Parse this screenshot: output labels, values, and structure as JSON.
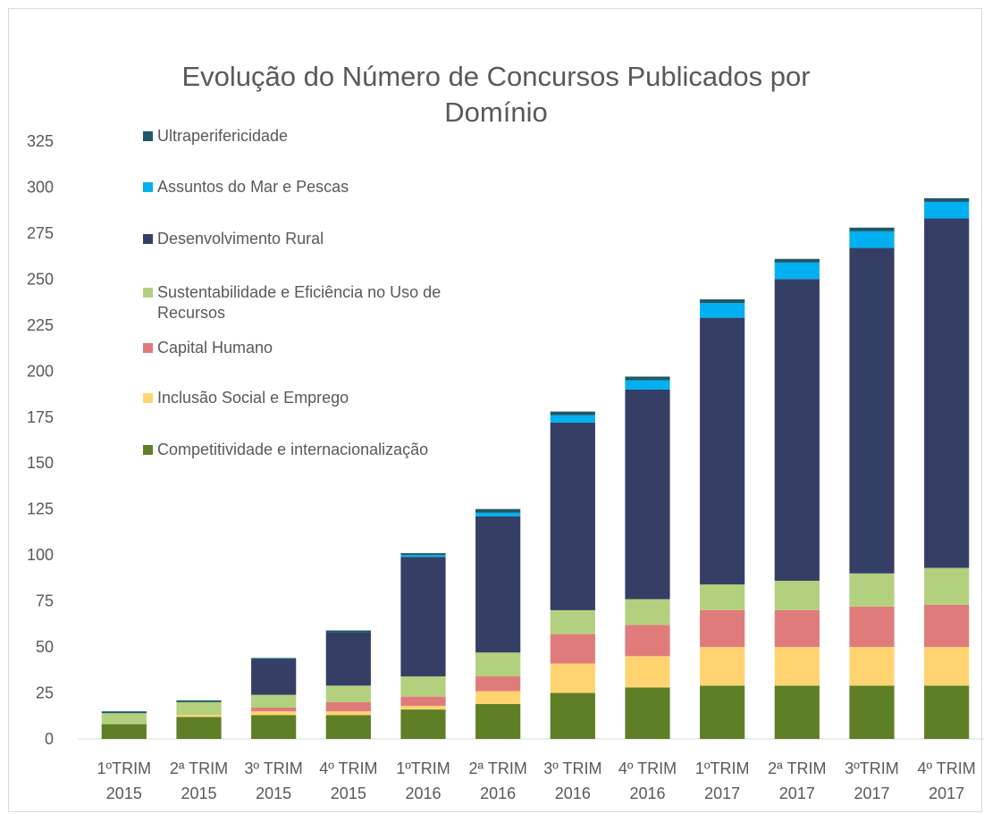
{
  "chart_data": {
    "type": "stacked_bar",
    "title": "Evolução do Número de Concursos Publicados por Domínio",
    "categories": [
      "1ºTRIM 2015",
      "2ª TRIM 2015",
      "3º TRIM 2015",
      "4º TRIM 2015",
      "1ºTRIM 2016",
      "2ª TRIM 2016",
      "3º TRIM 2016",
      "4º TRIM 2016",
      "1ºTRIM 2017",
      "2ª TRIM 2017",
      "3ºTRIM 2017",
      "4º TRIM 2017"
    ],
    "series": [
      {
        "name": "Competitividade e internacionalização",
        "color": "#5f7f26",
        "values": [
          8,
          12,
          13,
          13,
          16,
          19,
          25,
          28,
          29,
          29,
          29,
          29
        ]
      },
      {
        "name": "Inclusão Social e Emprego",
        "color": "#ffd470",
        "values": [
          0,
          1,
          2,
          2,
          2,
          7,
          16,
          17,
          21,
          21,
          21,
          21
        ]
      },
      {
        "name": "Capital Humano",
        "color": "#e07b7b",
        "values": [
          0,
          0,
          2,
          5,
          5,
          8,
          16,
          17,
          20,
          20,
          22,
          23
        ]
      },
      {
        "name": "Sustentabilidade e Eficiência no Uso de Recursos",
        "color": "#b3d07f",
        "values": [
          6,
          7,
          7,
          9,
          11,
          13,
          13,
          14,
          14,
          16,
          18,
          20
        ]
      },
      {
        "name": "Desenvolvimento Rural",
        "color": "#353f66",
        "values": [
          0,
          0,
          19,
          29,
          65,
          74,
          102,
          114,
          145,
          164,
          177,
          190
        ]
      },
      {
        "name": "Assuntos do Mar e Pescas",
        "color": "#00b0f0",
        "values": [
          0,
          0,
          0,
          0,
          1,
          2,
          4,
          5,
          8,
          9,
          9,
          9
        ]
      },
      {
        "name": "Ultraperifericidade",
        "color": "#1f5866",
        "values": [
          1,
          1,
          1,
          1,
          1,
          2,
          2,
          2,
          2,
          2,
          2,
          2
        ]
      }
    ],
    "ylim": [
      0,
      325
    ],
    "yticks": [
      0,
      25,
      50,
      75,
      100,
      125,
      150,
      175,
      200,
      225,
      250,
      275,
      300,
      325
    ]
  }
}
